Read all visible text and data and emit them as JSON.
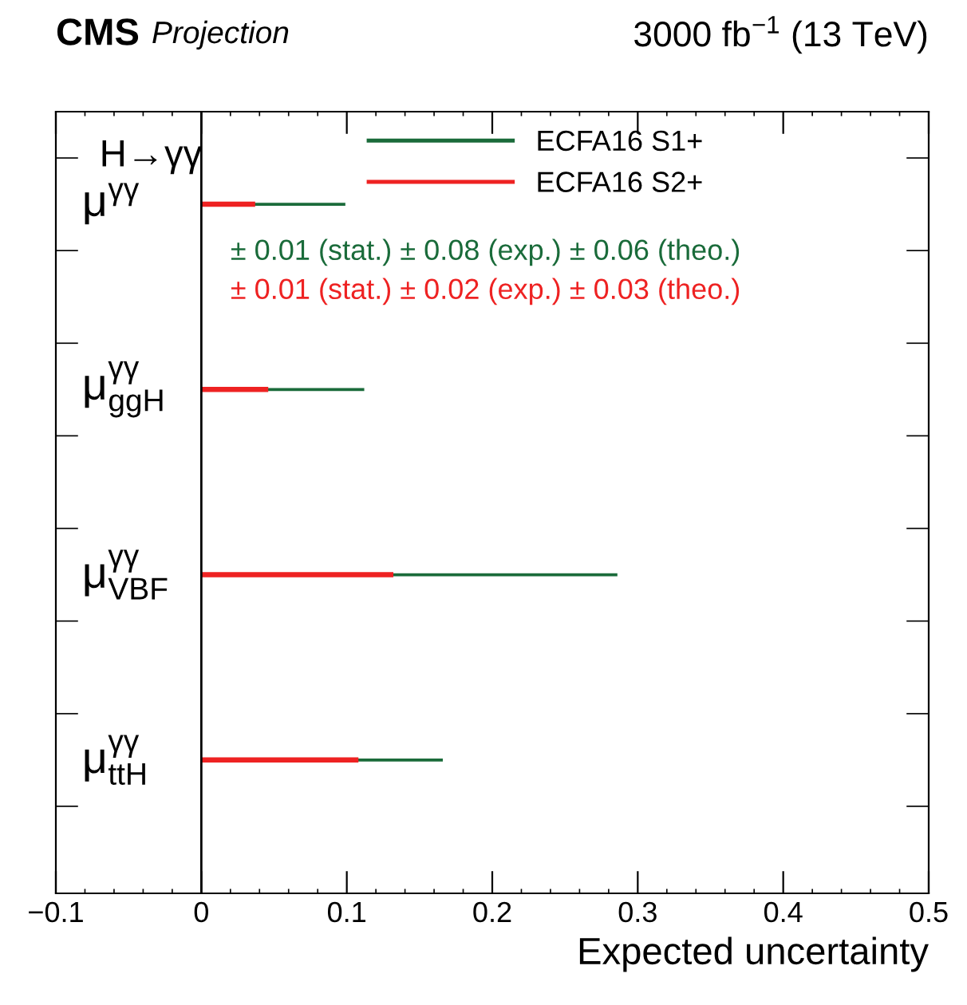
{
  "chart_data": {
    "type": "bar",
    "orientation": "horizontal",
    "title": "CMS",
    "subtitle": "Projection",
    "xlabel": "Expected uncertainty",
    "categories": [
      "μ$^{γγ}$",
      "μ$^{γγ}$$_{ggH}$",
      "μ$^{γγ}$$_{VBF}$",
      "μ$^{γγ}$$_{ttH}$"
    ],
    "series": [
      {
        "name": "ECFA16 S1+",
        "color": "#1a6b3a",
        "values": [
          0.099,
          0.112,
          0.286,
          0.166
        ]
      },
      {
        "name": "ECFA16 S2+",
        "color": "#ee2222",
        "values": [
          0.037,
          0.046,
          0.132,
          0.108
        ]
      }
    ],
    "xlim": [
      -0.1,
      0.5
    ],
    "xticks": [
      {
        "value": -0.1,
        "label": "−0.1"
      },
      0,
      0.1,
      0.2,
      0.3,
      0.4,
      0.5
    ],
    "ref_lines": [
      {
        "axis": "x",
        "value": 0,
        "color": "#000000"
      }
    ],
    "annotations": [
      "3000 fb$^{−1}$ (13 TeV)",
      "H→γγ",
      "± 0.01 (stat.) ± 0.08 (exp.) ± 0.06 (theo.)",
      "± 0.01 (stat.) ± 0.02 (exp.) ± 0.03 (theo.)"
    ],
    "legend": "top",
    "grid": false
  }
}
